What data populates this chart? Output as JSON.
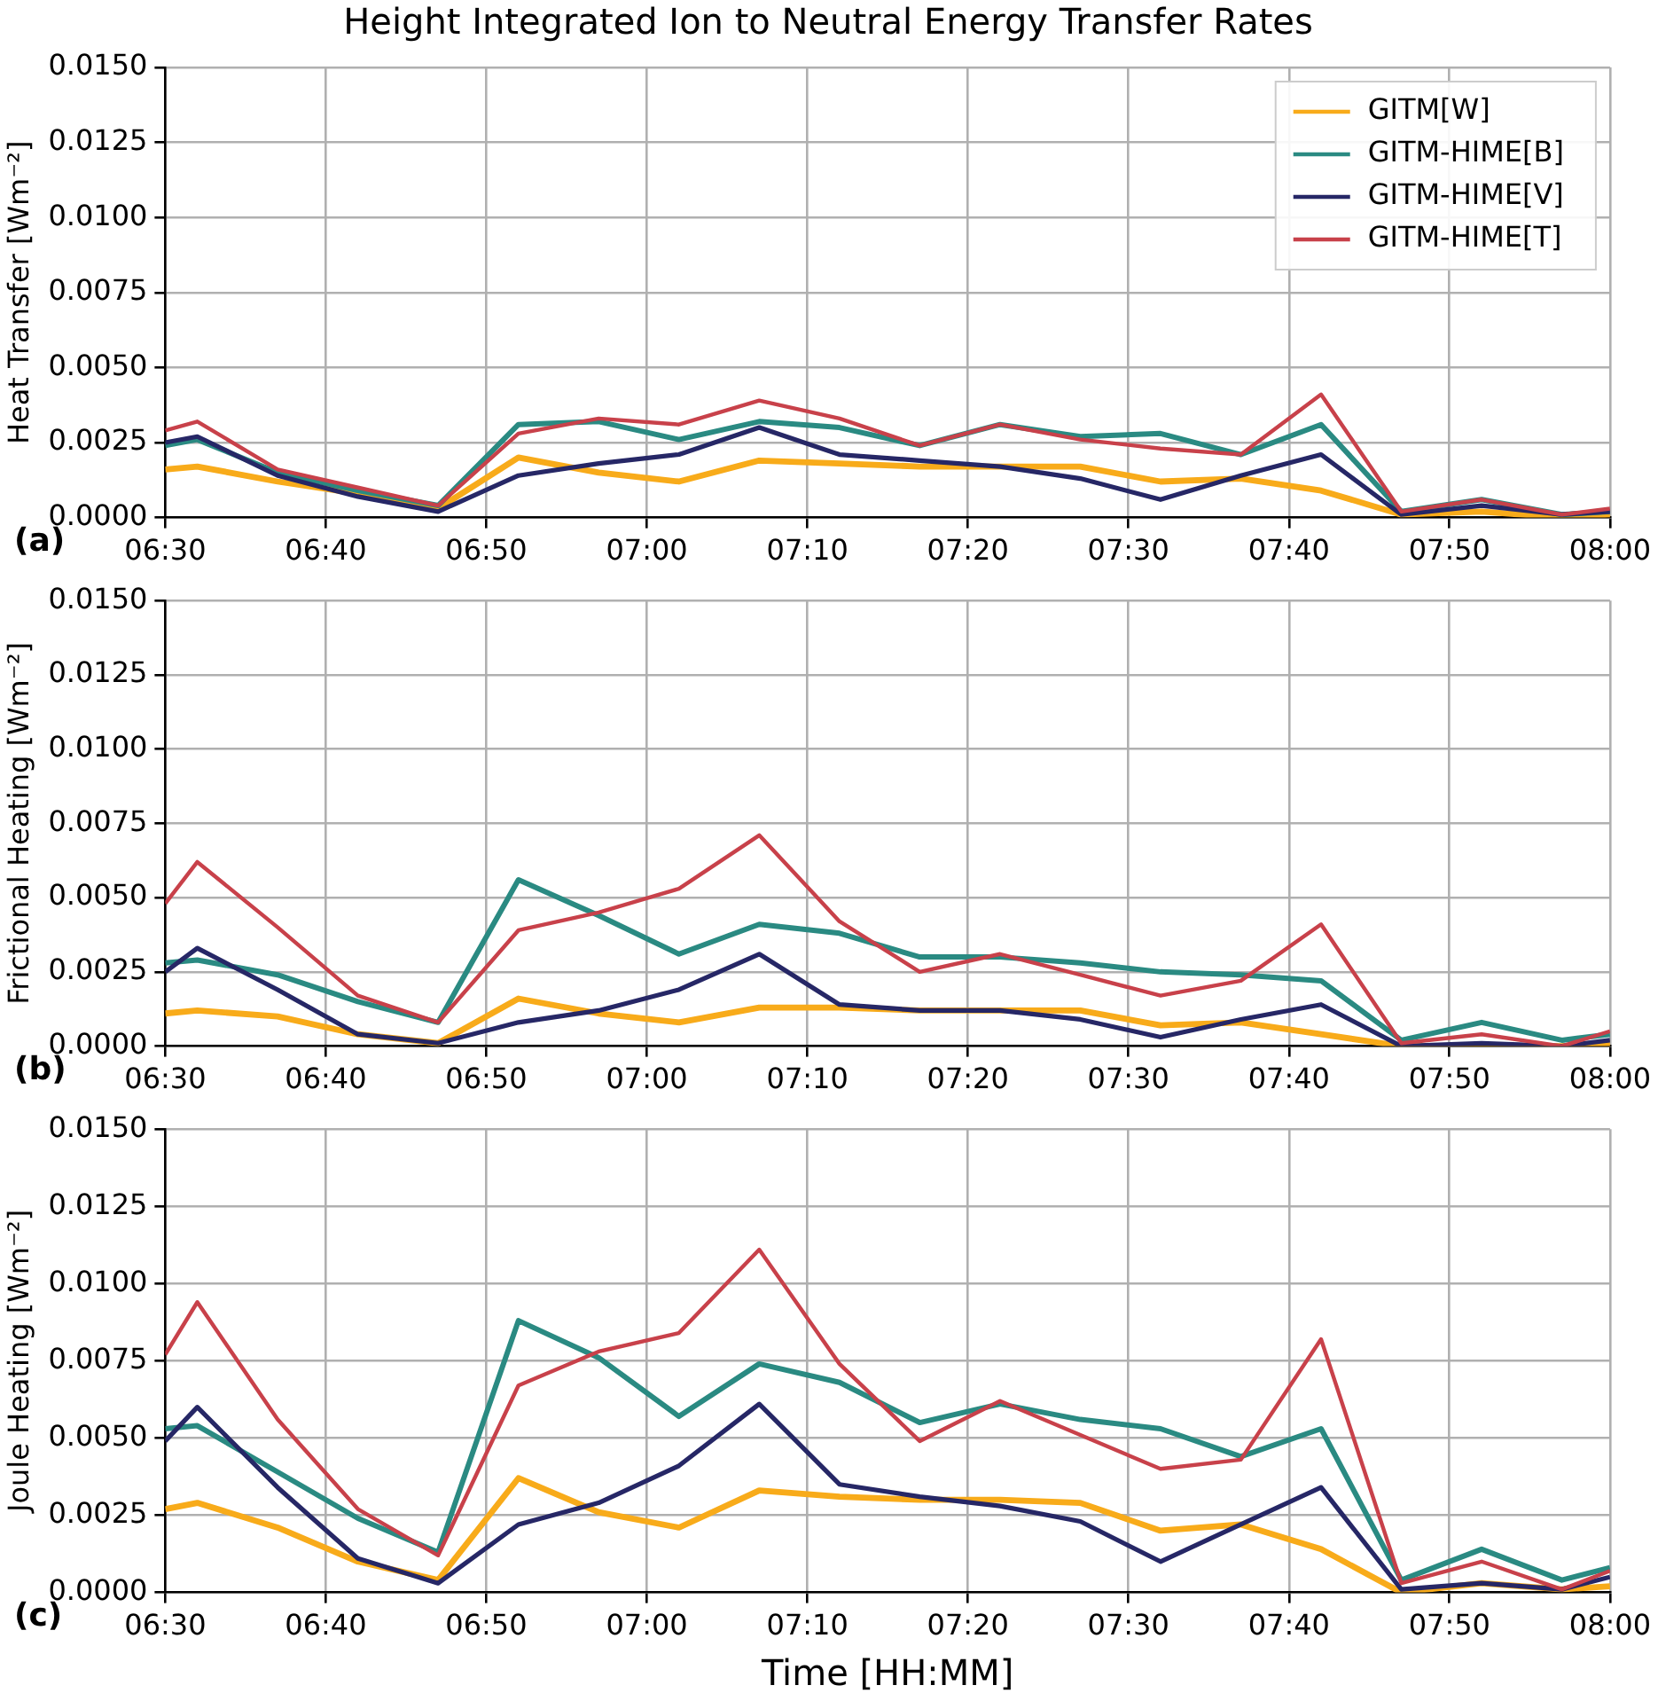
{
  "chart_data": [
    {
      "type": "line",
      "title": "Height Integrated Ion to Neutral Energy Transfer Rates",
      "ylabel": "Heat Transfer [Wm⁻²]",
      "annotations": [
        "(a)"
      ],
      "legend": "top right",
      "grid": true,
      "marker": "none",
      "line_style": "solid",
      "x": [
        6.5,
        6.5333,
        6.6167,
        6.7,
        6.7833,
        6.8667,
        6.95,
        7.0333,
        7.1167,
        7.2,
        7.2833,
        7.3667,
        7.45,
        7.5333,
        7.6167,
        7.7,
        7.7833,
        7.8667,
        7.95,
        8.0
      ],
      "xlim": [
        6.5,
        8.0
      ],
      "xticks": [
        {
          "value": 6.5,
          "label": "06:30"
        },
        {
          "value": 6.6667,
          "label": "06:40"
        },
        {
          "value": 6.8333,
          "label": "06:50"
        },
        {
          "value": 7.0,
          "label": "07:00"
        },
        {
          "value": 7.1667,
          "label": "07:10"
        },
        {
          "value": 7.3333,
          "label": "07:20"
        },
        {
          "value": 7.5,
          "label": "07:30"
        },
        {
          "value": 7.6667,
          "label": "07:40"
        },
        {
          "value": 7.8333,
          "label": "07:50"
        },
        {
          "value": 8.0,
          "label": "08:00"
        }
      ],
      "ylim": [
        0,
        0.015
      ],
      "yticks": [
        {
          "value": 0,
          "label": "0.0000"
        },
        {
          "value": 0.0025,
          "label": "0.0025"
        },
        {
          "value": 0.005,
          "label": "0.0050"
        },
        {
          "value": 0.0075,
          "label": "0.0075"
        },
        {
          "value": 0.01,
          "label": "0.0100"
        },
        {
          "value": 0.0125,
          "label": "0.0125"
        },
        {
          "value": 0.015,
          "label": "0.0150"
        }
      ],
      "series": [
        {
          "name": "GITM[W]",
          "color": "#f8ab1a",
          "values": [
            0.0016,
            0.0017,
            0.0012,
            0.0008,
            0.0003,
            0.002,
            0.0015,
            0.0012,
            0.0019,
            0.0018,
            0.0017,
            0.0017,
            0.0017,
            0.0012,
            0.0013,
            0.0009,
            0.0001,
            0.0002,
            0.0,
            0.0001
          ]
        },
        {
          "name": "GITM-HIME[B]",
          "color": "#2a8a82",
          "values": [
            0.0024,
            0.0026,
            0.0015,
            0.0009,
            0.0004,
            0.0031,
            0.0032,
            0.0026,
            0.0032,
            0.003,
            0.0024,
            0.0031,
            0.0027,
            0.0028,
            0.0021,
            0.0031,
            0.0002,
            0.0006,
            0.0001,
            0.0002
          ]
        },
        {
          "name": "GITM-HIME[V]",
          "color": "#262766",
          "values": [
            0.0025,
            0.0027,
            0.0014,
            0.0007,
            0.0002,
            0.0014,
            0.0018,
            0.0021,
            0.003,
            0.0021,
            0.0019,
            0.0017,
            0.0013,
            0.0006,
            0.0014,
            0.0021,
            0.0001,
            0.0004,
            0.0001,
            0.0002
          ]
        },
        {
          "name": "GITM-HIME[T]",
          "color": "#c8414a",
          "values": [
            0.0029,
            0.0032,
            0.0016,
            0.001,
            0.0004,
            0.0028,
            0.0033,
            0.0031,
            0.0039,
            0.0033,
            0.0024,
            0.0031,
            0.0026,
            0.0023,
            0.0021,
            0.0041,
            0.0002,
            0.0006,
            0.0001,
            0.0003
          ]
        }
      ]
    },
    {
      "type": "line",
      "ylabel": "Frictional Heating [Wm⁻²]",
      "annotations": [
        "(b)"
      ],
      "grid": true,
      "marker": "none",
      "line_style": "solid",
      "x": [
        6.5,
        6.5333,
        6.6167,
        6.7,
        6.7833,
        6.8667,
        6.95,
        7.0333,
        7.1167,
        7.2,
        7.2833,
        7.3667,
        7.45,
        7.5333,
        7.6167,
        7.7,
        7.7833,
        7.8667,
        7.95,
        8.0
      ],
      "xlim": [
        6.5,
        8.0
      ],
      "xticks": [
        {
          "value": 6.5,
          "label": "06:30"
        },
        {
          "value": 6.6667,
          "label": "06:40"
        },
        {
          "value": 6.8333,
          "label": "06:50"
        },
        {
          "value": 7.0,
          "label": "07:00"
        },
        {
          "value": 7.1667,
          "label": "07:10"
        },
        {
          "value": 7.3333,
          "label": "07:20"
        },
        {
          "value": 7.5,
          "label": "07:30"
        },
        {
          "value": 7.6667,
          "label": "07:40"
        },
        {
          "value": 7.8333,
          "label": "07:50"
        },
        {
          "value": 8.0,
          "label": "08:00"
        }
      ],
      "ylim": [
        0,
        0.015
      ],
      "yticks": [
        {
          "value": 0,
          "label": "0.0000"
        },
        {
          "value": 0.0025,
          "label": "0.0025"
        },
        {
          "value": 0.005,
          "label": "0.0050"
        },
        {
          "value": 0.0075,
          "label": "0.0075"
        },
        {
          "value": 0.01,
          "label": "0.0100"
        },
        {
          "value": 0.0125,
          "label": "0.0125"
        },
        {
          "value": 0.015,
          "label": "0.0150"
        }
      ],
      "series": [
        {
          "color": "#f8ab1a",
          "values": [
            0.0011,
            0.0012,
            0.001,
            0.0004,
            0.0001,
            0.0016,
            0.0011,
            0.0008,
            0.0013,
            0.0013,
            0.0012,
            0.0012,
            0.0012,
            0.0007,
            0.0008,
            0.0004,
            0.0,
            0.0,
            0.0,
            0.0001
          ]
        },
        {
          "color": "#2a8a82",
          "values": [
            0.0028,
            0.0029,
            0.0024,
            0.0015,
            0.0008,
            0.0056,
            0.0044,
            0.0031,
            0.0041,
            0.0038,
            0.003,
            0.003,
            0.0028,
            0.0025,
            0.0024,
            0.0022,
            0.0002,
            0.0008,
            0.0002,
            0.0004
          ]
        },
        {
          "color": "#262766",
          "values": [
            0.0025,
            0.0033,
            0.0019,
            0.0004,
            0.0001,
            0.0008,
            0.0012,
            0.0019,
            0.0031,
            0.0014,
            0.0012,
            0.0012,
            0.0009,
            0.0003,
            0.0009,
            0.0014,
            0.0,
            0.0001,
            0.0,
            0.0002
          ]
        },
        {
          "color": "#c8414a",
          "values": [
            0.0048,
            0.0062,
            0.004,
            0.0017,
            0.0008,
            0.0039,
            0.0045,
            0.0053,
            0.0071,
            0.0042,
            0.0025,
            0.0031,
            0.0024,
            0.0017,
            0.0022,
            0.0041,
            0.0001,
            0.0004,
            0.0,
            0.0005
          ]
        }
      ]
    },
    {
      "type": "line",
      "xlabel": "Time [HH:MM]",
      "ylabel": "Joule Heating [Wm⁻²]",
      "annotations": [
        "(c)"
      ],
      "grid": true,
      "marker": "none",
      "line_style": "solid",
      "x": [
        6.5,
        6.5333,
        6.6167,
        6.7,
        6.7833,
        6.8667,
        6.95,
        7.0333,
        7.1167,
        7.2,
        7.2833,
        7.3667,
        7.45,
        7.5333,
        7.6167,
        7.7,
        7.7833,
        7.8667,
        7.95,
        8.0
      ],
      "xlim": [
        6.5,
        8.0
      ],
      "xticks": [
        {
          "value": 6.5,
          "label": "06:30"
        },
        {
          "value": 6.6667,
          "label": "06:40"
        },
        {
          "value": 6.8333,
          "label": "06:50"
        },
        {
          "value": 7.0,
          "label": "07:00"
        },
        {
          "value": 7.1667,
          "label": "07:10"
        },
        {
          "value": 7.3333,
          "label": "07:20"
        },
        {
          "value": 7.5,
          "label": "07:30"
        },
        {
          "value": 7.6667,
          "label": "07:40"
        },
        {
          "value": 7.8333,
          "label": "07:50"
        },
        {
          "value": 8.0,
          "label": "08:00"
        }
      ],
      "ylim": [
        0,
        0.015
      ],
      "yticks": [
        {
          "value": 0,
          "label": "0.0000"
        },
        {
          "value": 0.0025,
          "label": "0.0025"
        },
        {
          "value": 0.005,
          "label": "0.0050"
        },
        {
          "value": 0.0075,
          "label": "0.0075"
        },
        {
          "value": 0.01,
          "label": "0.0100"
        },
        {
          "value": 0.0125,
          "label": "0.0125"
        },
        {
          "value": 0.015,
          "label": "0.0150"
        }
      ],
      "series": [
        {
          "color": "#f8ab1a",
          "values": [
            0.0027,
            0.0029,
            0.0021,
            0.001,
            0.0004,
            0.0037,
            0.0026,
            0.0021,
            0.0033,
            0.0031,
            0.003,
            0.003,
            0.0029,
            0.002,
            0.0022,
            0.0014,
            0.0,
            0.0003,
            0.0001,
            0.0002
          ]
        },
        {
          "color": "#2a8a82",
          "values": [
            0.0053,
            0.0054,
            0.0039,
            0.0024,
            0.0013,
            0.0088,
            0.0076,
            0.0057,
            0.0074,
            0.0068,
            0.0055,
            0.0061,
            0.0056,
            0.0053,
            0.0044,
            0.0053,
            0.0004,
            0.0014,
            0.0004,
            0.0008
          ]
        },
        {
          "color": "#262766",
          "values": [
            0.0049,
            0.006,
            0.0034,
            0.0011,
            0.0003,
            0.0022,
            0.0029,
            0.0041,
            0.0061,
            0.0035,
            0.0031,
            0.0028,
            0.0023,
            0.001,
            0.0022,
            0.0034,
            0.0001,
            0.0003,
            0.0001,
            0.0005
          ]
        },
        {
          "color": "#c8414a",
          "values": [
            0.0077,
            0.0094,
            0.0056,
            0.0027,
            0.0012,
            0.0067,
            0.0078,
            0.0084,
            0.0111,
            0.0074,
            0.0049,
            0.0062,
            0.0051,
            0.004,
            0.0043,
            0.0082,
            0.0003,
            0.001,
            0.0001,
            0.0007
          ]
        }
      ]
    }
  ]
}
